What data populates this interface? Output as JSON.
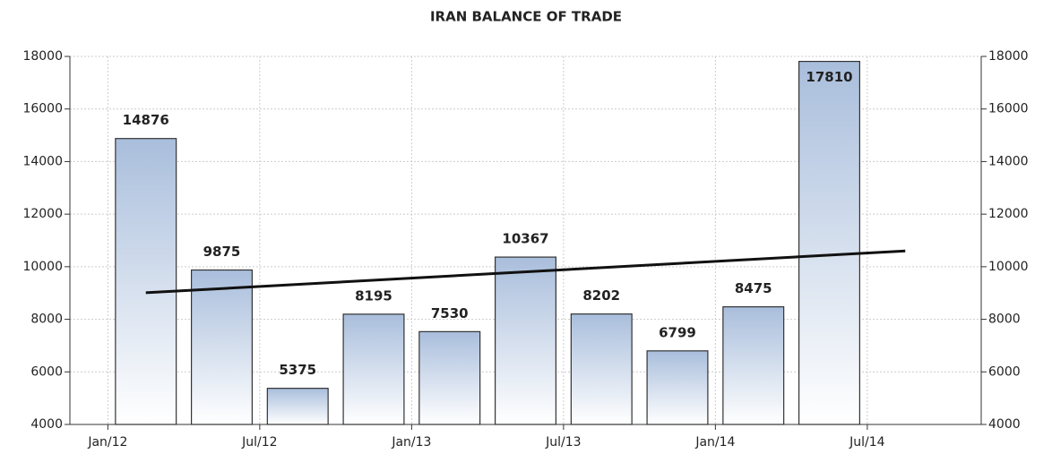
{
  "chart_data": {
    "type": "bar",
    "title": "IRAN BALANCE OF TRADE",
    "categories": [
      null,
      null,
      null,
      null,
      null,
      null,
      null,
      null,
      null,
      null
    ],
    "values": [
      14876,
      9875,
      5375,
      8195,
      7530,
      10367,
      8202,
      6799,
      8475,
      17810
    ],
    "color": "#a9bedc",
    "xlim": [
      -1,
      11
    ],
    "xticks": [
      {
        "value": -0.5,
        "label": "Jan/12"
      },
      {
        "value": 1.5,
        "label": "Jul/12"
      },
      {
        "value": 3.5,
        "label": "Jan/13"
      },
      {
        "value": 5.5,
        "label": "Jul/13"
      },
      {
        "value": 7.5,
        "label": "Jan/14"
      },
      {
        "value": 9.5,
        "label": "Jul/14"
      }
    ],
    "ylim": [
      4000,
      18000
    ],
    "yticks": [
      4000,
      6000,
      8000,
      10000,
      12000,
      14000,
      16000,
      18000
    ],
    "y2lim": [
      4000,
      18000
    ],
    "y2ticks": [
      4000,
      6000,
      8000,
      10000,
      12000,
      14000,
      16000,
      18000
    ],
    "trend": {
      "x": [
        0,
        10
      ],
      "values": [
        9010,
        10600
      ],
      "color": "#111111"
    },
    "grid": true
  }
}
